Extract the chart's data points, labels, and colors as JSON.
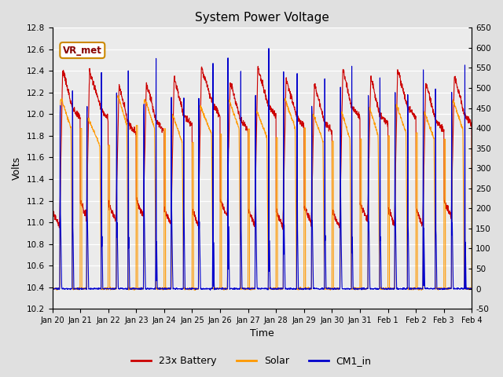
{
  "title": "System Power Voltage",
  "xlabel": "Time",
  "ylabel_left": "Volts",
  "ylim_left": [
    10.2,
    12.8
  ],
  "ylim_right": [
    -50,
    650
  ],
  "yticks_left": [
    10.2,
    10.4,
    10.6,
    10.8,
    11.0,
    11.2,
    11.4,
    11.6,
    11.8,
    12.0,
    12.2,
    12.4,
    12.6,
    12.8
  ],
  "yticks_right": [
    -50,
    0,
    50,
    100,
    150,
    200,
    250,
    300,
    350,
    400,
    450,
    500,
    550,
    600,
    650
  ],
  "xtick_labels": [
    "Jan 20",
    "Jan 21",
    "Jan 22",
    "Jan 23",
    "Jan 24",
    "Jan 25",
    "Jan 26",
    "Jan 27",
    "Jan 28",
    "Jan 29",
    "Jan 30",
    "Jan 31",
    "Feb 1",
    "Feb 2",
    "Feb 3",
    "Feb 4"
  ],
  "annotation_text": "VR_met",
  "n_days": 15,
  "background_color": "#e0e0e0",
  "plot_bg_color": "#ebebeb",
  "grid_color": "#d8d8d8"
}
